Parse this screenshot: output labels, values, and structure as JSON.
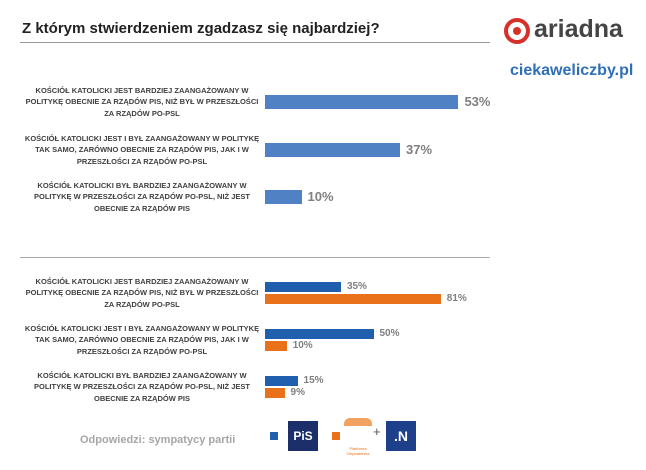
{
  "header": {
    "title": "Z którym stwierdzeniem zgadzasz się najbardziej?",
    "brand": "ariadna",
    "site": "ciekaweliczby.pl"
  },
  "chart_data": [
    {
      "type": "bar",
      "orientation": "horizontal",
      "categories": [
        "KOŚCIÓŁ KATOLICKI JEST BARDZIEJ ZAANGAŻOWANY W POLITYKĘ OBECNIE ZA RZĄDÓW PIS, NIŻ BYŁ W PRZESZŁOŚCI ZA RZĄDÓW PO-PSL",
        "KOŚCIÓŁ KATOLICKI JEST I BYŁ ZAANGAŻOWANY W POLITYKĘ TAK SAMO, ZARÓWNO OBECNIE ZA RZĄDÓW PIS, JAK I W PRZESZŁOŚCI ZA RZĄDÓW PO-PSL",
        "KOŚCIÓŁ KATOLICKI BYŁ BARDZIEJ ZAANGAŻOWANY W POLITYKĘ W PRZESZŁOŚCI ZA RZĄDÓW PO-PSL, NIŻ JEST OBECNIE ZA RZĄDÓW PIS"
      ],
      "values": [
        53,
        37,
        10
      ],
      "value_labels": [
        "53%",
        "37%",
        "10%"
      ],
      "color": "#4f81c4"
    },
    {
      "type": "grouped-bar",
      "orientation": "horizontal",
      "categories": [
        "KOŚCIÓŁ KATOLICKI JEST BARDZIEJ ZAANGAŻOWANY W POLITYKĘ OBECNIE ZA RZĄDÓW PIS, NIŻ BYŁ W PRZESZŁOŚCI ZA RZĄDÓW PO-PSL",
        "KOŚCIÓŁ KATOLICKI JEST I BYŁ ZAANGAŻOWANY W POLITYKĘ TAK SAMO, ZARÓWNO OBECNIE ZA RZĄDÓW PIS, JAK I W PRZESZŁOŚCI ZA RZĄDÓW PO-PSL",
        "KOŚCIÓŁ KATOLICKI BYŁ BARDZIEJ ZAANGAŻOWANY W POLITYKĘ W PRZESZŁOŚCI ZA RZĄDÓW PO-PSL, NIŻ JEST OBECNIE ZA RZĄDÓW PIS"
      ],
      "series": [
        {
          "name": "PiS",
          "color": "#1f5fad",
          "values": [
            35,
            50,
            15
          ],
          "value_labels": [
            "35%",
            "50%",
            "15%"
          ]
        },
        {
          "name": ".N",
          "color": "#e8711a",
          "values": [
            81,
            10,
            9
          ],
          "value_labels": [
            "81%",
            "10%",
            "9%"
          ]
        }
      ],
      "legend_title": "Odpowiedzi: sympatycy partii",
      "legend_extra": [
        "Platforma Obywatelska",
        "+"
      ]
    }
  ]
}
